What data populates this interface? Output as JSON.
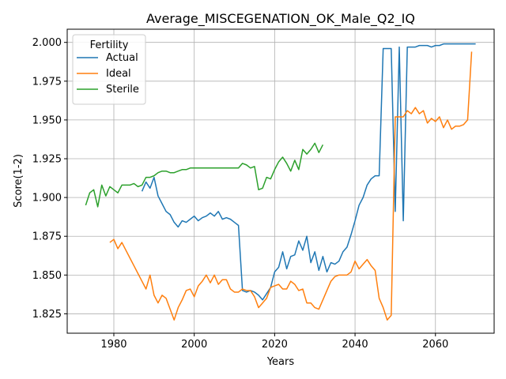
{
  "chart_data": {
    "type": "line",
    "title": "Average_MISCEGENATION_OK_Male_Q2_IQ",
    "xlabel": "Years",
    "ylabel": "Score(1-2)",
    "xlim": [
      1968.4,
      2074.6
    ],
    "ylim": [
      1.8125,
      2.0085
    ],
    "xticks": [
      1980,
      2000,
      2020,
      2040,
      2060
    ],
    "xtick_labels": [
      "1980",
      "2000",
      "2020",
      "2040",
      "2060"
    ],
    "yticks": [
      1.825,
      1.85,
      1.875,
      1.9,
      1.925,
      1.95,
      1.975,
      2.0
    ],
    "ytick_labels": [
      "1.825",
      "1.850",
      "1.875",
      "1.900",
      "1.925",
      "1.950",
      "1.975",
      "2.000"
    ],
    "grid": true,
    "legend": {
      "title": "Fertility",
      "placement": "top-left"
    },
    "series": [
      {
        "name": "Actual",
        "color": "#1f77b4",
        "points": [
          [
            1987,
            1.904
          ],
          [
            1988,
            1.91
          ],
          [
            1989,
            1.906
          ],
          [
            1990,
            1.913
          ],
          [
            1991,
            1.901
          ],
          [
            1992,
            1.896
          ],
          [
            1993,
            1.891
          ],
          [
            1994,
            1.889
          ],
          [
            1995,
            1.884
          ],
          [
            1996,
            1.881
          ],
          [
            1997,
            1.885
          ],
          [
            1998,
            1.884
          ],
          [
            1999,
            1.886
          ],
          [
            2000,
            1.888
          ],
          [
            2001,
            1.885
          ],
          [
            2002,
            1.887
          ],
          [
            2003,
            1.888
          ],
          [
            2004,
            1.89
          ],
          [
            2005,
            1.888
          ],
          [
            2006,
            1.891
          ],
          [
            2007,
            1.886
          ],
          [
            2008,
            1.887
          ],
          [
            2009,
            1.886
          ],
          [
            2010,
            1.884
          ],
          [
            2011,
            1.882
          ],
          [
            2012,
            1.84
          ],
          [
            2013,
            1.839
          ],
          [
            2014,
            1.84
          ],
          [
            2015,
            1.839
          ],
          [
            2016,
            1.837
          ],
          [
            2017,
            1.834
          ],
          [
            2018,
            1.838
          ],
          [
            2019,
            1.842
          ],
          [
            2020,
            1.852
          ],
          [
            2021,
            1.855
          ],
          [
            2022,
            1.865
          ],
          [
            2023,
            1.854
          ],
          [
            2024,
            1.862
          ],
          [
            2025,
            1.863
          ],
          [
            2026,
            1.872
          ],
          [
            2027,
            1.866
          ],
          [
            2028,
            1.875
          ],
          [
            2029,
            1.858
          ],
          [
            2030,
            1.865
          ],
          [
            2031,
            1.853
          ],
          [
            2032,
            1.862
          ],
          [
            2033,
            1.852
          ],
          [
            2034,
            1.858
          ],
          [
            2035,
            1.857
          ],
          [
            2036,
            1.859
          ],
          [
            2037,
            1.865
          ],
          [
            2038,
            1.868
          ],
          [
            2039,
            1.876
          ],
          [
            2040,
            1.885
          ],
          [
            2041,
            1.895
          ],
          [
            2042,
            1.9
          ],
          [
            2043,
            1.908
          ],
          [
            2044,
            1.912
          ],
          [
            2045,
            1.914
          ],
          [
            2046,
            1.914
          ],
          [
            2047,
            1.996
          ],
          [
            2048,
            1.996
          ],
          [
            2049,
            1.996
          ],
          [
            2050,
            1.891
          ],
          [
            2051,
            1.997
          ],
          [
            2052,
            1.885
          ],
          [
            2053,
            1.997
          ],
          [
            2054,
            1.997
          ],
          [
            2055,
            1.997
          ],
          [
            2056,
            1.998
          ],
          [
            2057,
            1.998
          ],
          [
            2058,
            1.998
          ],
          [
            2059,
            1.997
          ],
          [
            2060,
            1.998
          ],
          [
            2061,
            1.998
          ],
          [
            2062,
            1.999
          ],
          [
            2063,
            1.999
          ],
          [
            2064,
            1.999
          ],
          [
            2065,
            1.999
          ],
          [
            2066,
            1.999
          ],
          [
            2067,
            1.999
          ],
          [
            2068,
            1.999
          ],
          [
            2069,
            1.999
          ],
          [
            2070,
            1.999
          ]
        ]
      },
      {
        "name": "Ideal",
        "color": "#ff7f0e",
        "points": [
          [
            1979,
            1.871
          ],
          [
            1980,
            1.873
          ],
          [
            1981,
            1.867
          ],
          [
            1982,
            1.871
          ],
          [
            1983,
            1.866
          ],
          [
            1984,
            1.861
          ],
          [
            1985,
            1.856
          ],
          [
            1986,
            1.851
          ],
          [
            1987,
            1.846
          ],
          [
            1988,
            1.841
          ],
          [
            1989,
            1.85
          ],
          [
            1990,
            1.837
          ],
          [
            1991,
            1.832
          ],
          [
            1992,
            1.837
          ],
          [
            1993,
            1.835
          ],
          [
            1994,
            1.828
          ],
          [
            1995,
            1.821
          ],
          [
            1996,
            1.829
          ],
          [
            1997,
            1.834
          ],
          [
            1998,
            1.84
          ],
          [
            1999,
            1.841
          ],
          [
            2000,
            1.836
          ],
          [
            2001,
            1.843
          ],
          [
            2002,
            1.846
          ],
          [
            2003,
            1.85
          ],
          [
            2004,
            1.845
          ],
          [
            2005,
            1.85
          ],
          [
            2006,
            1.844
          ],
          [
            2007,
            1.847
          ],
          [
            2008,
            1.847
          ],
          [
            2009,
            1.841
          ],
          [
            2010,
            1.839
          ],
          [
            2011,
            1.839
          ],
          [
            2012,
            1.841
          ],
          [
            2013,
            1.84
          ],
          [
            2014,
            1.84
          ],
          [
            2015,
            1.836
          ],
          [
            2016,
            1.829
          ],
          [
            2017,
            1.832
          ],
          [
            2018,
            1.835
          ],
          [
            2019,
            1.842
          ],
          [
            2020,
            1.843
          ],
          [
            2021,
            1.844
          ],
          [
            2022,
            1.841
          ],
          [
            2023,
            1.841
          ],
          [
            2024,
            1.846
          ],
          [
            2025,
            1.844
          ],
          [
            2026,
            1.84
          ],
          [
            2027,
            1.841
          ],
          [
            2028,
            1.832
          ],
          [
            2029,
            1.832
          ],
          [
            2030,
            1.829
          ],
          [
            2031,
            1.828
          ],
          [
            2032,
            1.834
          ],
          [
            2033,
            1.84
          ],
          [
            2034,
            1.846
          ],
          [
            2035,
            1.849
          ],
          [
            2036,
            1.85
          ],
          [
            2037,
            1.85
          ],
          [
            2038,
            1.85
          ],
          [
            2039,
            1.852
          ],
          [
            2040,
            1.859
          ],
          [
            2041,
            1.854
          ],
          [
            2042,
            1.857
          ],
          [
            2043,
            1.86
          ],
          [
            2044,
            1.856
          ],
          [
            2045,
            1.853
          ],
          [
            2046,
            1.835
          ],
          [
            2047,
            1.829
          ],
          [
            2048,
            1.821
          ],
          [
            2049,
            1.824
          ],
          [
            2050,
            1.952
          ],
          [
            2051,
            1.952
          ],
          [
            2052,
            1.952
          ],
          [
            2053,
            1.956
          ],
          [
            2054,
            1.954
          ],
          [
            2055,
            1.958
          ],
          [
            2056,
            1.954
          ],
          [
            2057,
            1.956
          ],
          [
            2058,
            1.948
          ],
          [
            2059,
            1.951
          ],
          [
            2060,
            1.949
          ],
          [
            2061,
            1.952
          ],
          [
            2062,
            1.945
          ],
          [
            2063,
            1.95
          ],
          [
            2064,
            1.944
          ],
          [
            2065,
            1.946
          ],
          [
            2066,
            1.946
          ],
          [
            2067,
            1.947
          ],
          [
            2068,
            1.95
          ],
          [
            2069,
            1.994
          ]
        ]
      },
      {
        "name": "Sterile",
        "color": "#2ca02c",
        "points": [
          [
            1973,
            1.895
          ],
          [
            1974,
            1.903
          ],
          [
            1975,
            1.905
          ],
          [
            1976,
            1.894
          ],
          [
            1977,
            1.908
          ],
          [
            1978,
            1.901
          ],
          [
            1979,
            1.907
          ],
          [
            1980,
            1.905
          ],
          [
            1981,
            1.903
          ],
          [
            1982,
            1.908
          ],
          [
            1983,
            1.908
          ],
          [
            1984,
            1.908
          ],
          [
            1985,
            1.909
          ],
          [
            1986,
            1.907
          ],
          [
            1987,
            1.908
          ],
          [
            1988,
            1.913
          ],
          [
            1989,
            1.913
          ],
          [
            1990,
            1.914
          ],
          [
            1991,
            1.916
          ],
          [
            1992,
            1.917
          ],
          [
            1993,
            1.917
          ],
          [
            1994,
            1.916
          ],
          [
            1995,
            1.916
          ],
          [
            1996,
            1.917
          ],
          [
            1997,
            1.918
          ],
          [
            1998,
            1.918
          ],
          [
            1999,
            1.919
          ],
          [
            2000,
            1.919
          ],
          [
            2001,
            1.919
          ],
          [
            2002,
            1.919
          ],
          [
            2003,
            1.919
          ],
          [
            2004,
            1.919
          ],
          [
            2005,
            1.919
          ],
          [
            2006,
            1.919
          ],
          [
            2007,
            1.919
          ],
          [
            2008,
            1.919
          ],
          [
            2009,
            1.919
          ],
          [
            2010,
            1.919
          ],
          [
            2011,
            1.919
          ],
          [
            2012,
            1.922
          ],
          [
            2013,
            1.921
          ],
          [
            2014,
            1.919
          ],
          [
            2015,
            1.92
          ],
          [
            2016,
            1.905
          ],
          [
            2017,
            1.906
          ],
          [
            2018,
            1.913
          ],
          [
            2019,
            1.912
          ],
          [
            2020,
            1.918
          ],
          [
            2021,
            1.923
          ],
          [
            2022,
            1.926
          ],
          [
            2023,
            1.922
          ],
          [
            2024,
            1.917
          ],
          [
            2025,
            1.924
          ],
          [
            2026,
            1.918
          ],
          [
            2027,
            1.931
          ],
          [
            2028,
            1.928
          ],
          [
            2029,
            1.931
          ],
          [
            2030,
            1.935
          ],
          [
            2031,
            1.929
          ],
          [
            2032,
            1.934
          ]
        ]
      }
    ]
  }
}
